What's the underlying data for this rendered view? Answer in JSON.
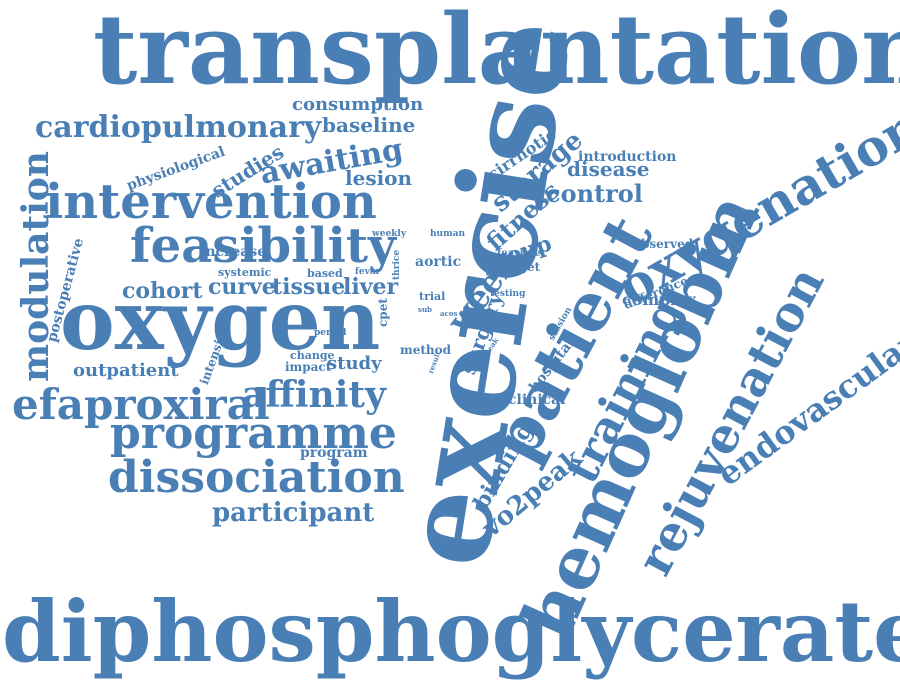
{
  "cloud_title": "",
  "color": "#4a7fb5",
  "words": [
    "transplantation",
    "diphosphoglycerate",
    "exercise",
    "hemoglobin",
    "oxygen",
    "patient",
    "oxygenation",
    "rejuvenation",
    "intervention",
    "feasibility",
    "training",
    "efaproxiral",
    "dissociation",
    "programme",
    "modulation",
    "endovascular",
    "cardiopulmonary",
    "affinity",
    "awaiting",
    "participant",
    "week",
    "vo2peak",
    "storage",
    "control",
    "fitness",
    "group",
    "binding",
    "surgery",
    "baseline",
    "consumption",
    "cohort",
    "curve",
    "tissue",
    "liver",
    "studies",
    "lesion",
    "disease",
    "cirrhotic",
    "introduction",
    "complex",
    "outpatient",
    "study",
    "hospital",
    "postoperative",
    "physiological",
    "increase",
    "aortic",
    "program",
    "clinical",
    "difference",
    "observed",
    "target",
    "feasible",
    "method",
    "impact",
    "change",
    "intensive",
    "cpet",
    "trial",
    "systemic",
    "based",
    "weekly",
    "human",
    "fevar",
    "thrice",
    "period",
    "testing",
    "session",
    "result",
    "peak",
    "acos",
    "sub"
  ]
}
